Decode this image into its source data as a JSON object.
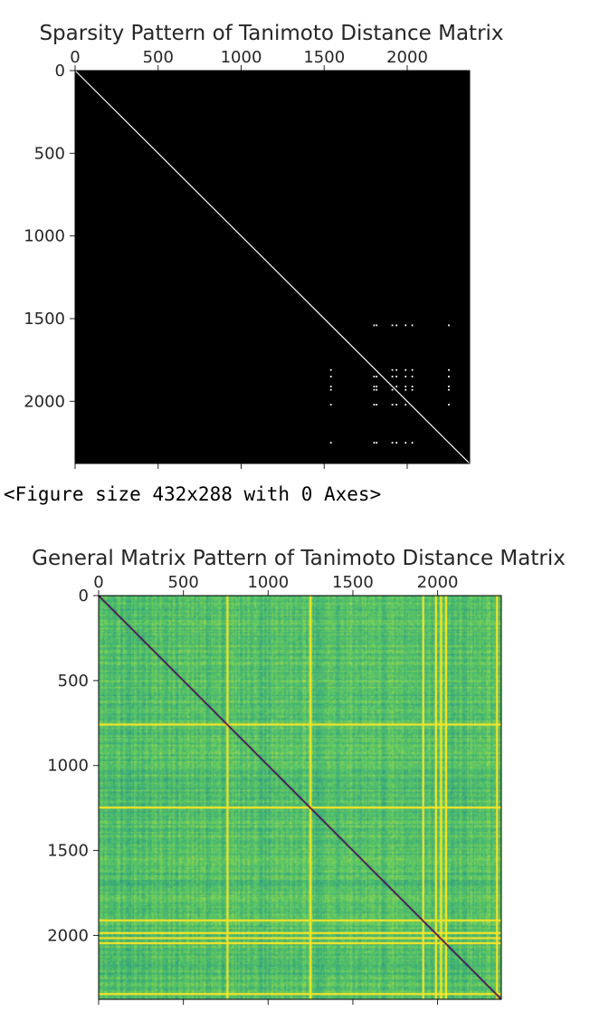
{
  "output_text": "<Figure size 432x288 with 0 Axes>",
  "chart_data": [
    {
      "type": "heatmap",
      "title": "Sparsity Pattern of Tanimoto Distance Matrix",
      "plot": "spy",
      "matrix_size": 2376,
      "xticks": [
        0,
        500,
        1000,
        1500,
        2000
      ],
      "yticks": [
        0,
        500,
        1000,
        1500,
        2000
      ],
      "xlim": [
        0,
        2376
      ],
      "ylim": [
        2376,
        0
      ],
      "x_axis_position": "top",
      "background_color": "#000000",
      "marker_color": "#ffffff",
      "diagonal": true,
      "offdiag_rows": [
        1540,
        1810,
        1850,
        1910,
        1930,
        2020,
        2250
      ],
      "offdiag_cols": [
        1540,
        1800,
        1815,
        1910,
        1935,
        1990,
        2030,
        2250
      ]
    },
    {
      "type": "heatmap",
      "title": "General Matrix Pattern of Tanimoto Distance Matrix",
      "plot": "matshow",
      "matrix_size": 2376,
      "colormap": "viridis",
      "xticks": [
        0,
        500,
        1000,
        1500,
        2000
      ],
      "yticks": [
        0,
        500,
        1000,
        1500,
        2000
      ],
      "xlim": [
        0,
        2376
      ],
      "ylim": [
        2376,
        0
      ],
      "x_axis_position": "top",
      "value_range": [
        0,
        1
      ],
      "diagonal_value": 0,
      "typical_value": 0.7,
      "high_value_lines": [
        760,
        1250,
        1915,
        1990,
        2020,
        2050,
        2350
      ],
      "colors": {
        "low": "#440154",
        "mid": "#2c728e",
        "base": "#3fae7a",
        "high": "#fde725"
      }
    }
  ]
}
